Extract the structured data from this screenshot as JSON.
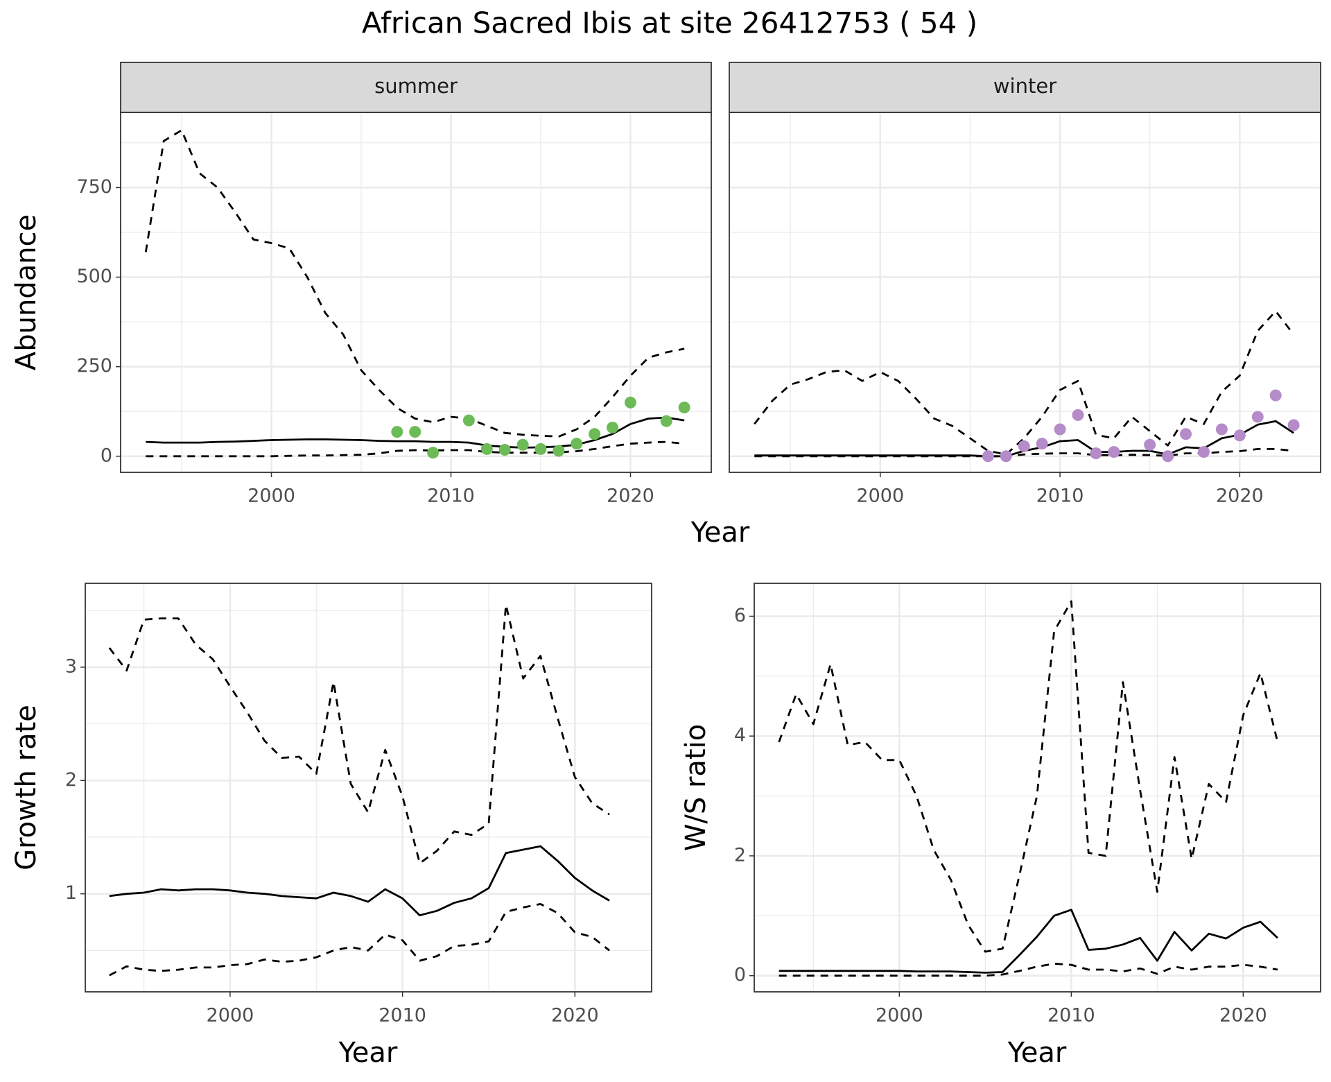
{
  "title": "African Sacred Ibis at site 26412753 ( 54 )",
  "chart_data": [
    {
      "type": "line",
      "strip": "summer",
      "xlabel": "Year",
      "ylabel": "Abundance",
      "x": [
        1993,
        1994,
        1995,
        1996,
        1997,
        1998,
        1999,
        2000,
        2001,
        2002,
        2003,
        2004,
        2005,
        2006,
        2007,
        2008,
        2009,
        2010,
        2011,
        2012,
        2013,
        2014,
        2015,
        2016,
        2017,
        2018,
        2019,
        2020,
        2021,
        2022,
        2023
      ],
      "series": [
        {
          "color": "#000000",
          "dash": "solid",
          "values": [
            40,
            38,
            38,
            38,
            40,
            41,
            43,
            45,
            46,
            47,
            47,
            46,
            45,
            43,
            42,
            42,
            40,
            40,
            38,
            30,
            26,
            24,
            25,
            27,
            32,
            45,
            62,
            90,
            105,
            108,
            100
          ]
        },
        {
          "color": "#000000",
          "dash": "dashed",
          "values": [
            0,
            0,
            0,
            0,
            0,
            0,
            0,
            0,
            1,
            2,
            2,
            3,
            4,
            8,
            15,
            17,
            16,
            17,
            17,
            12,
            10,
            10,
            10,
            11,
            14,
            20,
            28,
            35,
            38,
            40,
            35
          ]
        },
        {
          "color": "#000000",
          "dash": "dashed",
          "values": [
            570,
            880,
            910,
            790,
            750,
            680,
            605,
            595,
            580,
            500,
            400,
            340,
            240,
            185,
            135,
            105,
            95,
            110,
            105,
            85,
            65,
            60,
            57,
            55,
            75,
            110,
            165,
            225,
            275,
            290,
            300
          ]
        }
      ],
      "points": {
        "color": "#6cbb56",
        "x": [
          2007,
          2008,
          2009,
          2011,
          2012,
          2013,
          2014,
          2015,
          2016,
          2017,
          2018,
          2019,
          2020,
          2022,
          2023
        ],
        "values": [
          68,
          68,
          10,
          100,
          20,
          18,
          32,
          20,
          15,
          35,
          62,
          80,
          150,
          98,
          136
        ]
      },
      "xlim": [
        1991.6,
        2024.5
      ],
      "xticks": [
        2000,
        2010,
        2020
      ],
      "xminor": [
        1995,
        2005,
        2015
      ],
      "ylim": [
        -45,
        960
      ],
      "yticks": [
        0,
        250,
        500,
        750
      ],
      "yminor": [
        125,
        375,
        625,
        875
      ],
      "grid": true
    },
    {
      "type": "line",
      "strip": "winter",
      "x": [
        1993,
        1994,
        1995,
        1996,
        1997,
        1998,
        1999,
        2000,
        2001,
        2002,
        2003,
        2004,
        2005,
        2006,
        2007,
        2008,
        2009,
        2010,
        2011,
        2012,
        2013,
        2014,
        2015,
        2016,
        2017,
        2018,
        2019,
        2020,
        2021,
        2022,
        2023
      ],
      "series": [
        {
          "color": "#000000",
          "dash": "solid",
          "values": [
            2,
            2,
            2,
            2,
            2,
            2,
            2,
            2,
            2,
            2,
            2,
            2,
            2,
            0,
            0,
            15,
            25,
            42,
            45,
            12,
            12,
            15,
            15,
            5,
            25,
            22,
            50,
            60,
            88,
            98,
            65
          ]
        },
        {
          "color": "#000000",
          "dash": "dashed",
          "values": [
            0,
            0,
            0,
            0,
            0,
            0,
            0,
            0,
            0,
            0,
            0,
            0,
            0,
            0,
            0,
            5,
            7,
            8,
            8,
            3,
            3,
            4,
            3,
            1,
            8,
            8,
            12,
            14,
            20,
            20,
            15
          ]
        },
        {
          "color": "#000000",
          "dash": "dashed",
          "values": [
            90,
            155,
            200,
            215,
            235,
            240,
            210,
            235,
            210,
            160,
            105,
            85,
            50,
            15,
            5,
            50,
            110,
            185,
            210,
            60,
            50,
            110,
            70,
            30,
            110,
            90,
            180,
            225,
            350,
            405,
            340
          ]
        }
      ],
      "points": {
        "color": "#b58bc9",
        "x": [
          2006,
          2007,
          2008,
          2009,
          2010,
          2011,
          2012,
          2013,
          2015,
          2016,
          2017,
          2018,
          2019,
          2020,
          2021,
          2022,
          2023
        ],
        "values": [
          0,
          0,
          28,
          35,
          75,
          115,
          8,
          12,
          32,
          0,
          62,
          12,
          75,
          58,
          110,
          170,
          87
        ]
      },
      "xlim": [
        1991.6,
        2024.5
      ],
      "xticks": [
        2000,
        2010,
        2020
      ],
      "xminor": [
        1995,
        2005,
        2015
      ],
      "ylim": [
        -45,
        960
      ],
      "yticks": [
        0,
        250,
        500,
        750
      ],
      "yminor": [
        125,
        375,
        625,
        875
      ],
      "grid": true
    },
    {
      "type": "line",
      "xlabel": "Year",
      "ylabel": "Growth rate",
      "x": [
        1993,
        1994,
        1995,
        1996,
        1997,
        1998,
        1999,
        2000,
        2001,
        2002,
        2003,
        2004,
        2005,
        2006,
        2007,
        2008,
        2009,
        2010,
        2011,
        2012,
        2013,
        2014,
        2015,
        2016,
        2017,
        2018,
        2019,
        2020,
        2021,
        2022
      ],
      "series": [
        {
          "color": "#000000",
          "dash": "solid",
          "values": [
            0.98,
            1.0,
            1.01,
            1.04,
            1.03,
            1.04,
            1.04,
            1.03,
            1.01,
            1.0,
            0.98,
            0.97,
            0.96,
            1.01,
            0.98,
            0.93,
            1.04,
            0.96,
            0.81,
            0.85,
            0.92,
            0.96,
            1.05,
            1.36,
            1.39,
            1.42,
            1.29,
            1.14,
            1.03,
            0.94
          ]
        },
        {
          "color": "#000000",
          "dash": "dashed",
          "values": [
            0.28,
            0.36,
            0.33,
            0.32,
            0.33,
            0.35,
            0.35,
            0.37,
            0.38,
            0.42,
            0.4,
            0.41,
            0.44,
            0.5,
            0.53,
            0.5,
            0.64,
            0.59,
            0.41,
            0.45,
            0.54,
            0.55,
            0.58,
            0.84,
            0.88,
            0.91,
            0.83,
            0.66,
            0.62,
            0.5
          ]
        },
        {
          "color": "#000000",
          "dash": "dashed",
          "values": [
            3.17,
            2.97,
            3.42,
            3.43,
            3.43,
            3.2,
            3.07,
            2.83,
            2.6,
            2.35,
            2.2,
            2.21,
            2.06,
            2.87,
            1.97,
            1.72,
            2.27,
            1.86,
            1.27,
            1.38,
            1.55,
            1.52,
            1.62,
            3.55,
            2.9,
            3.1,
            2.55,
            2.03,
            1.8,
            1.7
          ]
        }
      ],
      "xlim": [
        1991.6,
        2024.45
      ],
      "xticks": [
        2000,
        2010,
        2020
      ],
      "xminor": [
        1995,
        2005,
        2015
      ],
      "ylim": [
        0.135,
        3.74
      ],
      "yticks": [
        1,
        2,
        3
      ],
      "yminor": [
        0.5,
        1.5,
        2.5,
        3.5
      ],
      "grid": true
    },
    {
      "type": "line",
      "xlabel": "Year",
      "ylabel": "W/S ratio",
      "x": [
        1993,
        1994,
        1995,
        1996,
        1997,
        1998,
        1999,
        2000,
        2001,
        2002,
        2003,
        2004,
        2005,
        2006,
        2007,
        2008,
        2009,
        2010,
        2011,
        2012,
        2013,
        2014,
        2015,
        2016,
        2017,
        2018,
        2019,
        2020,
        2021,
        2022
      ],
      "series": [
        {
          "color": "#000000",
          "dash": "solid",
          "values": [
            0.08,
            0.08,
            0.08,
            0.08,
            0.08,
            0.08,
            0.08,
            0.08,
            0.07,
            0.07,
            0.07,
            0.06,
            0.05,
            0.06,
            0.35,
            0.65,
            1.0,
            1.1,
            0.43,
            0.45,
            0.52,
            0.63,
            0.25,
            0.73,
            0.42,
            0.7,
            0.62,
            0.8,
            0.9,
            0.63
          ]
        },
        {
          "color": "#000000",
          "dash": "dashed",
          "values": [
            0,
            0,
            0,
            0,
            0,
            0,
            0,
            0,
            0,
            0,
            0,
            0,
            0,
            0.02,
            0.08,
            0.15,
            0.2,
            0.18,
            0.1,
            0.1,
            0.07,
            0.12,
            0.03,
            0.15,
            0.1,
            0.15,
            0.15,
            0.18,
            0.15,
            0.1
          ]
        },
        {
          "color": "#000000",
          "dash": "dashed",
          "values": [
            3.9,
            4.7,
            4.2,
            5.2,
            3.85,
            3.9,
            3.6,
            3.6,
            3.0,
            2.1,
            1.6,
            0.85,
            0.4,
            0.45,
            1.7,
            3.0,
            5.75,
            6.25,
            2.05,
            2.0,
            4.9,
            3.1,
            1.4,
            3.65,
            1.95,
            3.2,
            2.9,
            4.35,
            5.05,
            3.9
          ]
        }
      ],
      "xlim": [
        1991.56,
        2024.5
      ],
      "xticks": [
        2000,
        2010,
        2020
      ],
      "xminor": [
        1995,
        2005,
        2015
      ],
      "ylim": [
        -0.27,
        6.55
      ],
      "yticks": [
        0,
        2,
        4,
        6
      ],
      "yminor": [
        1,
        3,
        5
      ],
      "grid": true
    }
  ]
}
